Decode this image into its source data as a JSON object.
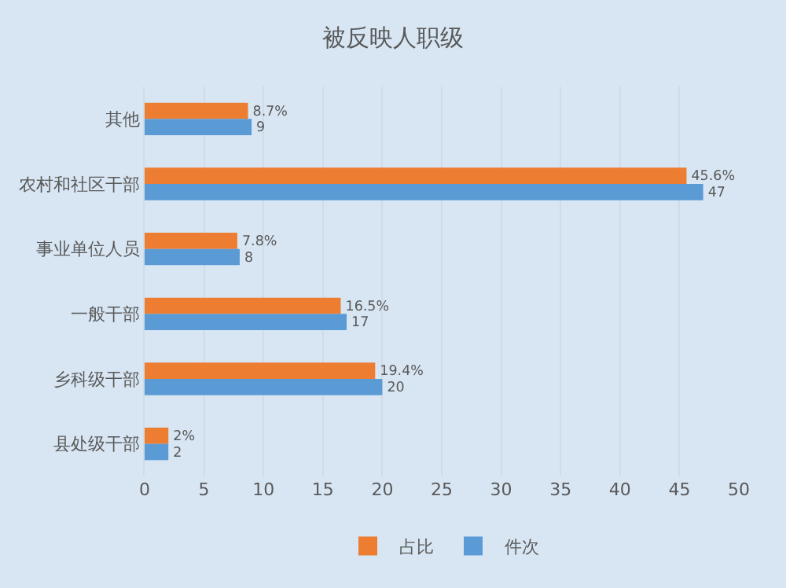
{
  "chart_data": {
    "type": "bar",
    "orientation": "horizontal",
    "title": "被反映人职级",
    "categories": [
      "其他",
      "农村和社区干部",
      "事业单位人员",
      "一般干部",
      "乡科级干部",
      "县处级干部"
    ],
    "series": [
      {
        "name": "占比",
        "color": "#ed7d31",
        "values": [
          8.7,
          45.6,
          7.8,
          16.5,
          19.4,
          2
        ],
        "value_labels": [
          "8.7%",
          "45.6%",
          "7.8%",
          "16.5%",
          "19.4%",
          "2%"
        ]
      },
      {
        "name": "件次",
        "color": "#5b9bd5",
        "values": [
          9,
          47,
          8,
          17,
          20,
          2
        ],
        "value_labels": [
          "9",
          "47",
          "8",
          "17",
          "20",
          "2"
        ]
      }
    ],
    "xlim": [
      0,
      50
    ],
    "xticks": [
      0,
      5,
      10,
      15,
      20,
      25,
      30,
      35,
      40,
      45,
      50
    ],
    "grid": "x",
    "legend": "bottom"
  }
}
